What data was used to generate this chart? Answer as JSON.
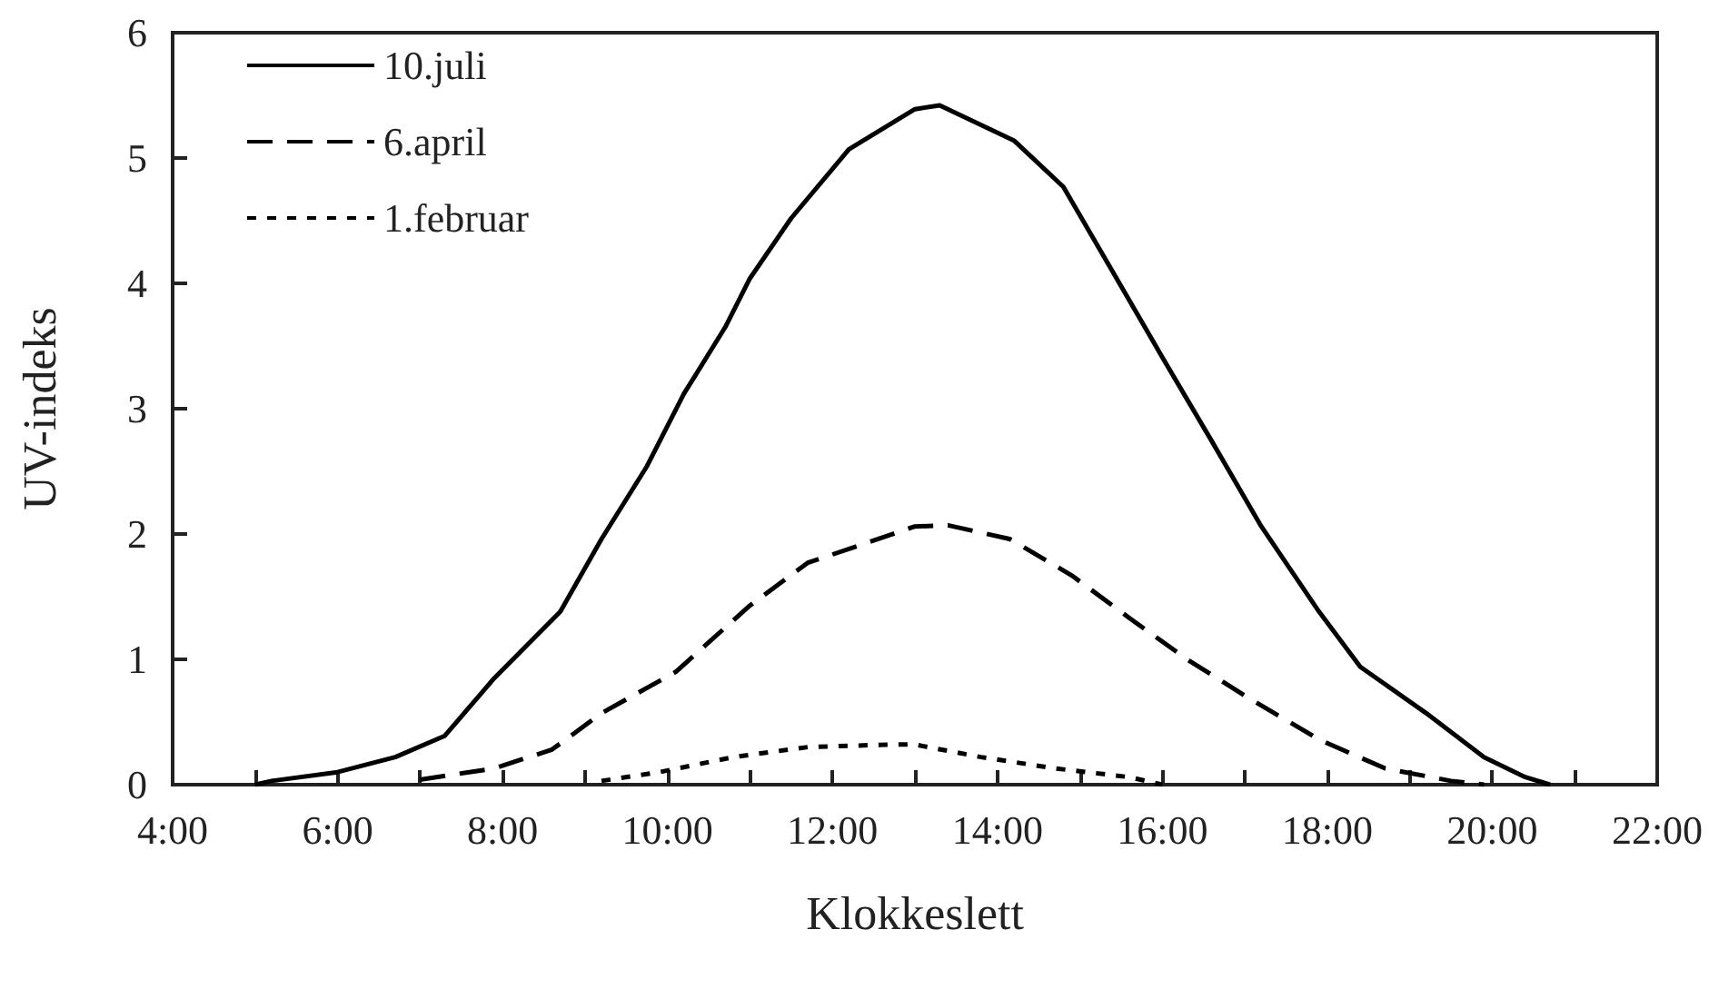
{
  "chart_data": {
    "type": "line",
    "xlabel": "Klokkeslett",
    "ylabel": "UV-indeks",
    "xlim": [
      4,
      22
    ],
    "ylim": [
      0,
      6
    ],
    "xticks": [
      {
        "value": 4,
        "label": "4:00"
      },
      {
        "value": 5,
        "label": null
      },
      {
        "value": 6,
        "label": "6:00"
      },
      {
        "value": 7,
        "label": null
      },
      {
        "value": 8,
        "label": "8:00"
      },
      {
        "value": 9,
        "label": null
      },
      {
        "value": 10,
        "label": "10:00"
      },
      {
        "value": 11,
        "label": null
      },
      {
        "value": 12,
        "label": "12:00"
      },
      {
        "value": 13,
        "label": null
      },
      {
        "value": 14,
        "label": "14:00"
      },
      {
        "value": 15,
        "label": null
      },
      {
        "value": 16,
        "label": "16:00"
      },
      {
        "value": 17,
        "label": null
      },
      {
        "value": 18,
        "label": "18:00"
      },
      {
        "value": 19,
        "label": null
      },
      {
        "value": 20,
        "label": "20:00"
      },
      {
        "value": 21,
        "label": null
      },
      {
        "value": 22,
        "label": "22:00"
      }
    ],
    "yticks": [
      0,
      1,
      2,
      3,
      4,
      5,
      6
    ],
    "grid": false,
    "legend": "top left",
    "series": [
      {
        "name": "10.juli",
        "color": "#000000",
        "line_style": "solid",
        "x": [
          5.0,
          5.2,
          6.0,
          6.7,
          7.3,
          7.9,
          8.7,
          9.2,
          9.75,
          10.2,
          10.7,
          11.0,
          11.5,
          12.2,
          13.0,
          13.3,
          14.2,
          14.8,
          15.4,
          16.0,
          16.6,
          17.2,
          17.9,
          18.4,
          19.2,
          19.9,
          20.4,
          20.7
        ],
        "values": [
          0,
          0.03,
          0.1,
          0.22,
          0.39,
          0.85,
          1.38,
          1.96,
          2.54,
          3.12,
          3.65,
          4.04,
          4.52,
          5.07,
          5.39,
          5.42,
          5.14,
          4.77,
          4.09,
          3.41,
          2.74,
          2.06,
          1.38,
          0.94,
          0.57,
          0.22,
          0.06,
          0
        ]
      },
      {
        "name": "6.april",
        "color": "#000000",
        "line_style": "dashed",
        "x": [
          7.0,
          7.9,
          8.6,
          9.2,
          10.1,
          11.0,
          11.7,
          13.0,
          13.4,
          14.15,
          14.9,
          15.6,
          16.3,
          17.0,
          17.9,
          18.7,
          19.5,
          19.9
        ],
        "values": [
          0.04,
          0.13,
          0.28,
          0.57,
          0.9,
          1.43,
          1.77,
          2.06,
          2.07,
          1.96,
          1.67,
          1.33,
          1.0,
          0.71,
          0.36,
          0.13,
          0.03,
          0
        ]
      },
      {
        "name": "1.februar",
        "color": "#000000",
        "line_style": "dotted",
        "x": [
          9.2,
          9.9,
          10.8,
          11.7,
          12.7,
          13.0,
          13.8,
          14.7,
          15.6,
          16.0
        ],
        "values": [
          0.03,
          0.1,
          0.22,
          0.3,
          0.32,
          0.32,
          0.22,
          0.13,
          0.06,
          0
        ]
      }
    ]
  }
}
